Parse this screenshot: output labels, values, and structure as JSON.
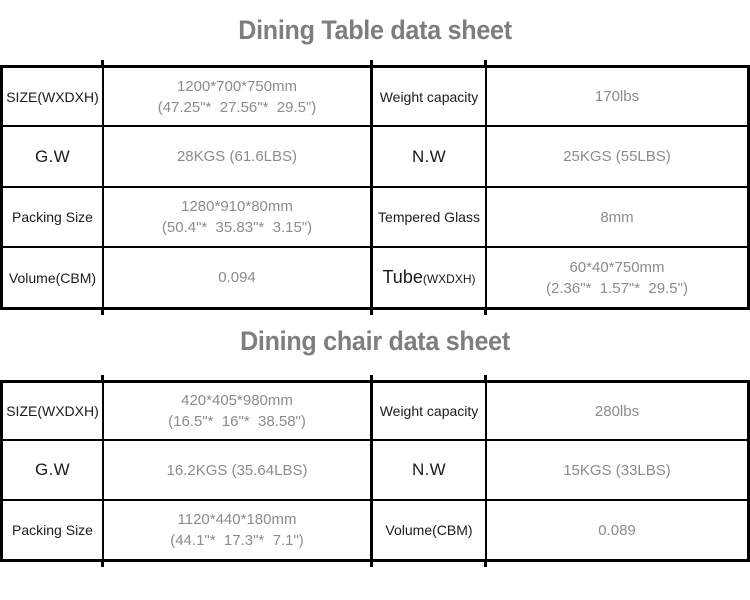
{
  "colors": {
    "border": "#000000",
    "label_text": "#1b1b1b",
    "value_text": "#8c8c8c",
    "title_text": "#7e7e7e",
    "background": "#ffffff"
  },
  "dining_table": {
    "title": "Dining Table data sheet",
    "rows": [
      {
        "cells": [
          {
            "text": "SIZE(WXDXH)"
          },
          {
            "lines": [
              "1200*700*750mm",
              "(47.25\"*  27.56\"*  29.5\")"
            ]
          },
          {
            "text": "Weight capacity"
          },
          {
            "lines": [
              "170lbs"
            ]
          }
        ]
      },
      {
        "cells": [
          {
            "text": "G.W"
          },
          {
            "lines": [
              "28KGS (61.6LBS)"
            ]
          },
          {
            "text": "N.W"
          },
          {
            "lines": [
              "25KGS (55LBS)"
            ]
          }
        ]
      },
      {
        "cells": [
          {
            "text": "Packing Size"
          },
          {
            "lines": [
              "1280*910*80mm",
              "(50.4\"*  35.83\"*  3.15\")"
            ]
          },
          {
            "text": "Tempered Glass"
          },
          {
            "lines": [
              "8mm"
            ]
          }
        ]
      },
      {
        "cells": [
          {
            "text": "Volume(CBM)"
          },
          {
            "lines": [
              "0.094"
            ]
          },
          {
            "main": "Tube",
            "suffix": "(WXDXH)"
          },
          {
            "lines": [
              "60*40*750mm",
              "(2.36\"*  1.57\"*  29.5\")"
            ]
          }
        ]
      }
    ]
  },
  "dining_chair": {
    "title": "Dining chair data sheet",
    "rows": [
      {
        "cells": [
          {
            "text": "SIZE(WXDXH)"
          },
          {
            "lines": [
              "420*405*980mm",
              "(16.5\"*  16\"*  38.58\")"
            ]
          },
          {
            "text": "Weight capacity"
          },
          {
            "lines": [
              "280lbs"
            ]
          }
        ]
      },
      {
        "cells": [
          {
            "text": "G.W"
          },
          {
            "lines": [
              "16.2KGS (35.64LBS)"
            ]
          },
          {
            "text": "N.W"
          },
          {
            "lines": [
              "15KGS (33LBS)"
            ]
          }
        ]
      },
      {
        "cells": [
          {
            "text": "Packing Size"
          },
          {
            "lines": [
              "1120*440*180mm",
              "(44.1\"*  17.3\"*  7.1\")"
            ]
          },
          {
            "text": "Volume(CBM)"
          },
          {
            "lines": [
              "0.089"
            ]
          }
        ]
      }
    ]
  }
}
